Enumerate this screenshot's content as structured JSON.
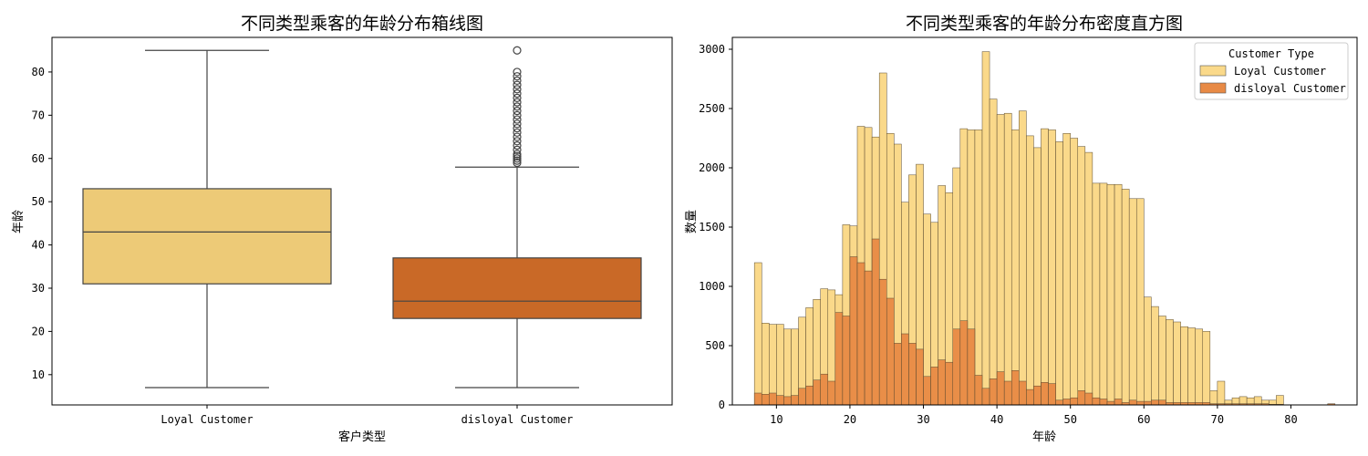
{
  "chart_data": [
    {
      "type": "box",
      "title": "不同类型乘客的年龄分布箱线图",
      "xlabel": "客户类型",
      "ylabel": "年龄",
      "ylim": [
        3,
        88
      ],
      "yticks": [
        10,
        20,
        30,
        40,
        50,
        60,
        70,
        80
      ],
      "categories": [
        "Loyal Customer",
        "disloyal Customer"
      ],
      "boxes": [
        {
          "category": "Loyal Customer",
          "color": "#EDCA77",
          "min": 7,
          "q1": 31,
          "median": 43,
          "q3": 53,
          "max": 85,
          "outliers": []
        },
        {
          "category": "disloyal Customer",
          "color": "#C96927",
          "min": 7,
          "q1": 23,
          "median": 27,
          "q3": 37,
          "max": 58,
          "outliers": [
            59,
            59.5,
            60,
            60.5,
            61,
            62,
            63,
            64,
            65,
            66,
            67,
            68,
            69,
            70,
            71,
            72,
            73,
            74,
            75,
            76,
            77,
            78,
            79,
            80,
            85
          ]
        }
      ]
    },
    {
      "type": "histogram",
      "title": "不同类型乘客的年龄分布密度直方图",
      "xlabel": "年龄",
      "ylabel": "数量",
      "xlim": [
        4,
        89
      ],
      "ylim": [
        0,
        3100
      ],
      "xticks": [
        10,
        20,
        30,
        40,
        50,
        60,
        70,
        80
      ],
      "yticks": [
        0,
        500,
        1000,
        1500,
        2000,
        2500,
        3000
      ],
      "bin_start": 7,
      "bin_width": 1,
      "legend": {
        "title": "Customer Type",
        "position": "top-right"
      },
      "series": [
        {
          "name": "Loyal Customer",
          "color": "#FAD98A",
          "values": [
            1200,
            690,
            680,
            680,
            640,
            640,
            740,
            820,
            890,
            980,
            970,
            930,
            1520,
            1510,
            2350,
            2340,
            2260,
            2800,
            2290,
            2200,
            1710,
            1940,
            2030,
            1610,
            1540,
            1850,
            1790,
            2000,
            2330,
            2320,
            2320,
            2980,
            2580,
            2450,
            2460,
            2320,
            2480,
            2270,
            2170,
            2330,
            2320,
            2220,
            2290,
            2250,
            2180,
            2130,
            1870,
            1870,
            1860,
            1860,
            1820,
            1740,
            1740,
            910,
            830,
            750,
            720,
            700,
            660,
            650,
            640,
            620,
            120,
            200,
            40,
            60,
            70,
            60,
            70,
            40,
            40,
            80,
            0,
            0,
            0,
            0,
            0,
            0,
            0
          ]
        },
        {
          "name": "disloyal Customer",
          "color": "#E88A45",
          "values": [
            100,
            90,
            100,
            80,
            70,
            80,
            140,
            160,
            210,
            260,
            200,
            780,
            750,
            1250,
            1200,
            1130,
            1400,
            1060,
            900,
            520,
            600,
            520,
            470,
            240,
            320,
            380,
            360,
            640,
            710,
            640,
            250,
            140,
            220,
            280,
            200,
            290,
            200,
            130,
            160,
            190,
            180,
            40,
            50,
            60,
            120,
            100,
            60,
            50,
            30,
            50,
            20,
            40,
            30,
            30,
            40,
            40,
            20,
            20,
            20,
            20,
            20,
            20,
            10,
            10,
            10,
            10,
            10,
            10,
            10,
            10,
            5,
            5,
            0,
            0,
            0,
            0,
            0,
            0,
            10
          ]
        }
      ]
    }
  ]
}
